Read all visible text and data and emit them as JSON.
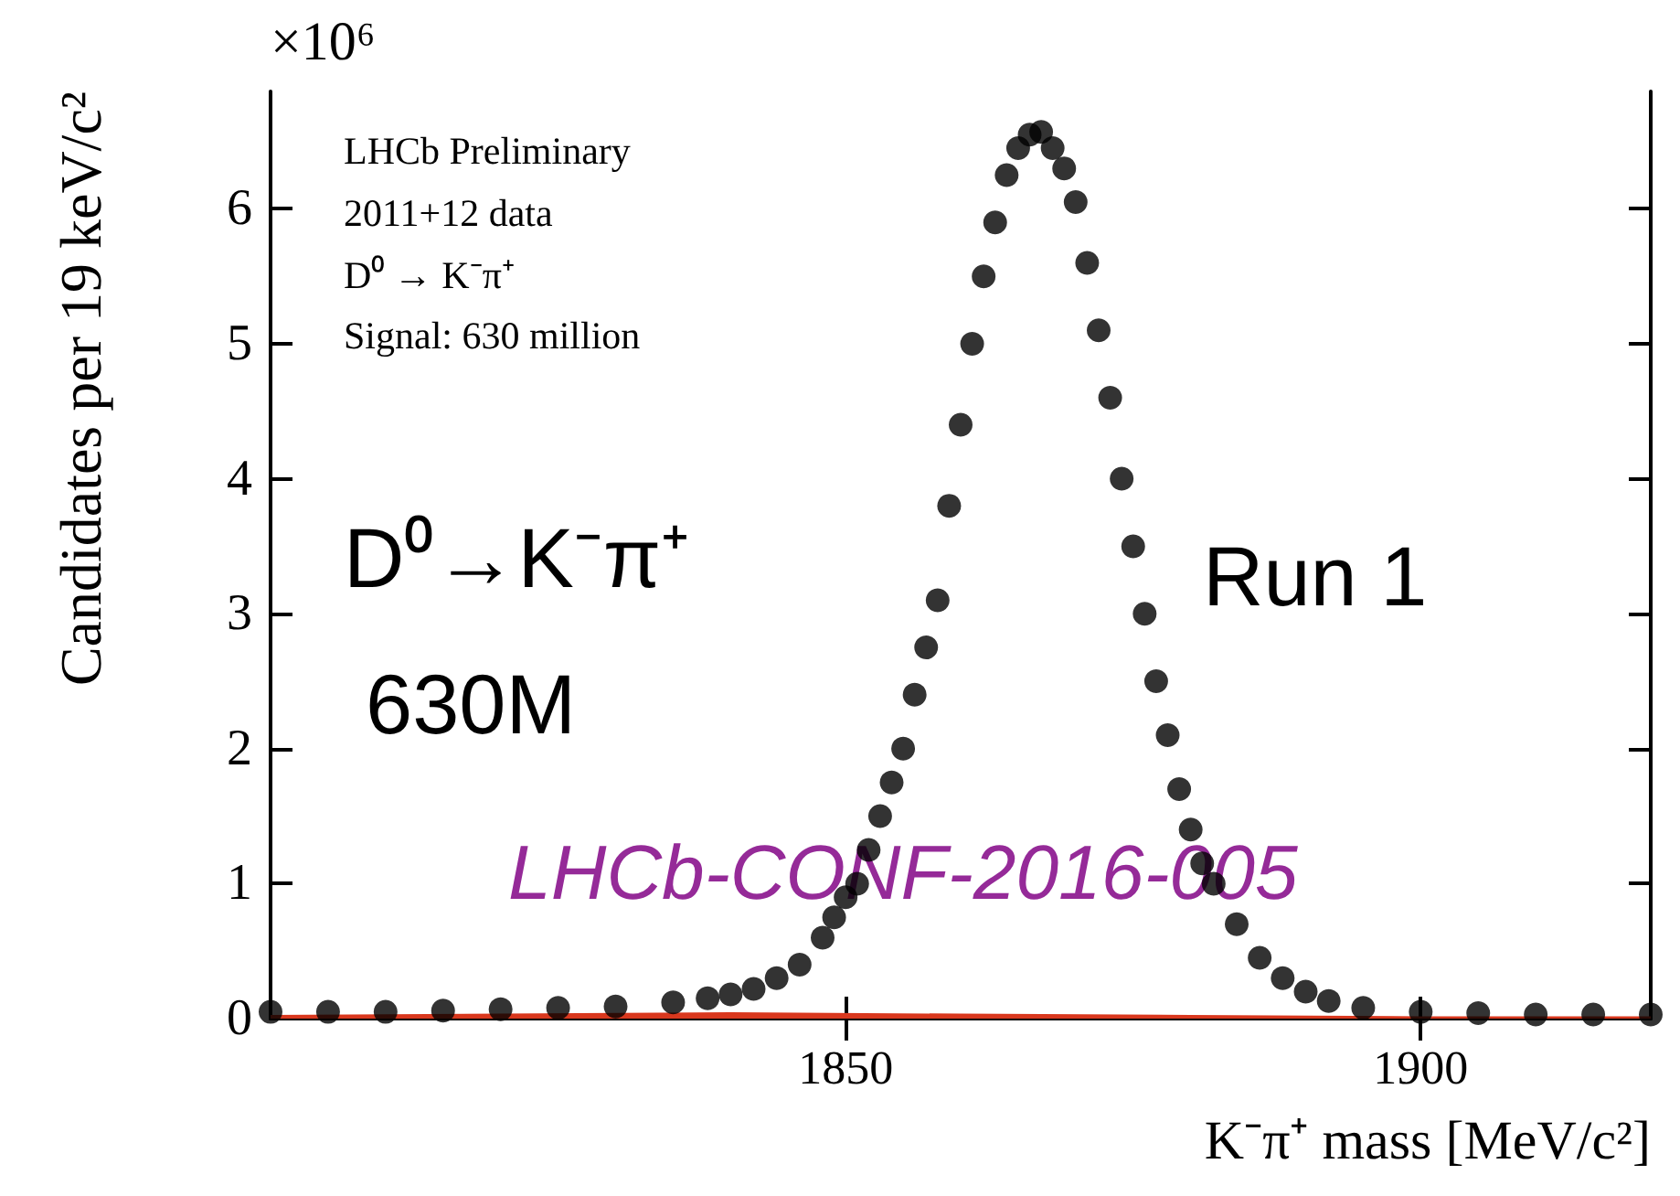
{
  "chart_data": {
    "type": "scatter",
    "xlabel": "K⁻π⁺ mass [MeV/c²]",
    "ylabel": "Candidates per 19 keV/c²",
    "annotations": [
      "×10⁶",
      "LHCb Preliminary",
      "2011+12 data",
      "D⁰ → K⁻π⁺",
      "Signal: 630 million",
      "D⁰→K⁻π⁺",
      "630M",
      "Run 1",
      "LHCb-CONF-2016-005"
    ],
    "xlim": [
      1800,
      1920
    ],
    "ylim": [
      0,
      6.87
    ],
    "xticks": [
      1850,
      1900
    ],
    "yticks": [
      0,
      1,
      2,
      3,
      4,
      5,
      6
    ],
    "series": [
      {
        "type": "area",
        "color": "#d9381e",
        "x": [
          1800,
          1820,
          1840,
          1860,
          1880,
          1900,
          1920
        ],
        "values": [
          0.02,
          0.03,
          0.04,
          0.03,
          0.02,
          0.01,
          0.01
        ]
      },
      {
        "color": "#000000",
        "marker": "circle",
        "x": [
          1800,
          1805,
          1810,
          1815,
          1820,
          1825,
          1830,
          1835,
          1838,
          1840,
          1842,
          1844,
          1846,
          1848,
          1849,
          1850,
          1851,
          1852,
          1853,
          1854,
          1855,
          1856,
          1857,
          1858,
          1859,
          1860,
          1861,
          1862,
          1863,
          1864,
          1865,
          1866,
          1867,
          1868,
          1869,
          1870,
          1871,
          1872,
          1873,
          1874,
          1875,
          1876,
          1877,
          1878,
          1879,
          1880,
          1881,
          1882,
          1884,
          1886,
          1888,
          1890,
          1892,
          1895,
          1900,
          1905,
          1910,
          1915,
          1920
        ],
        "values": [
          0.05,
          0.05,
          0.05,
          0.06,
          0.07,
          0.08,
          0.09,
          0.12,
          0.15,
          0.18,
          0.22,
          0.3,
          0.4,
          0.6,
          0.75,
          0.9,
          1.0,
          1.25,
          1.5,
          1.75,
          2.0,
          2.4,
          2.75,
          3.1,
          3.8,
          4.4,
          5.0,
          5.5,
          5.9,
          6.25,
          6.45,
          6.55,
          6.57,
          6.45,
          6.3,
          6.05,
          5.6,
          5.1,
          4.6,
          4.0,
          3.5,
          3.0,
          2.5,
          2.1,
          1.7,
          1.4,
          1.15,
          1.0,
          0.7,
          0.45,
          0.3,
          0.2,
          0.13,
          0.08,
          0.05,
          0.04,
          0.03,
          0.03,
          0.03
        ]
      }
    ]
  }
}
